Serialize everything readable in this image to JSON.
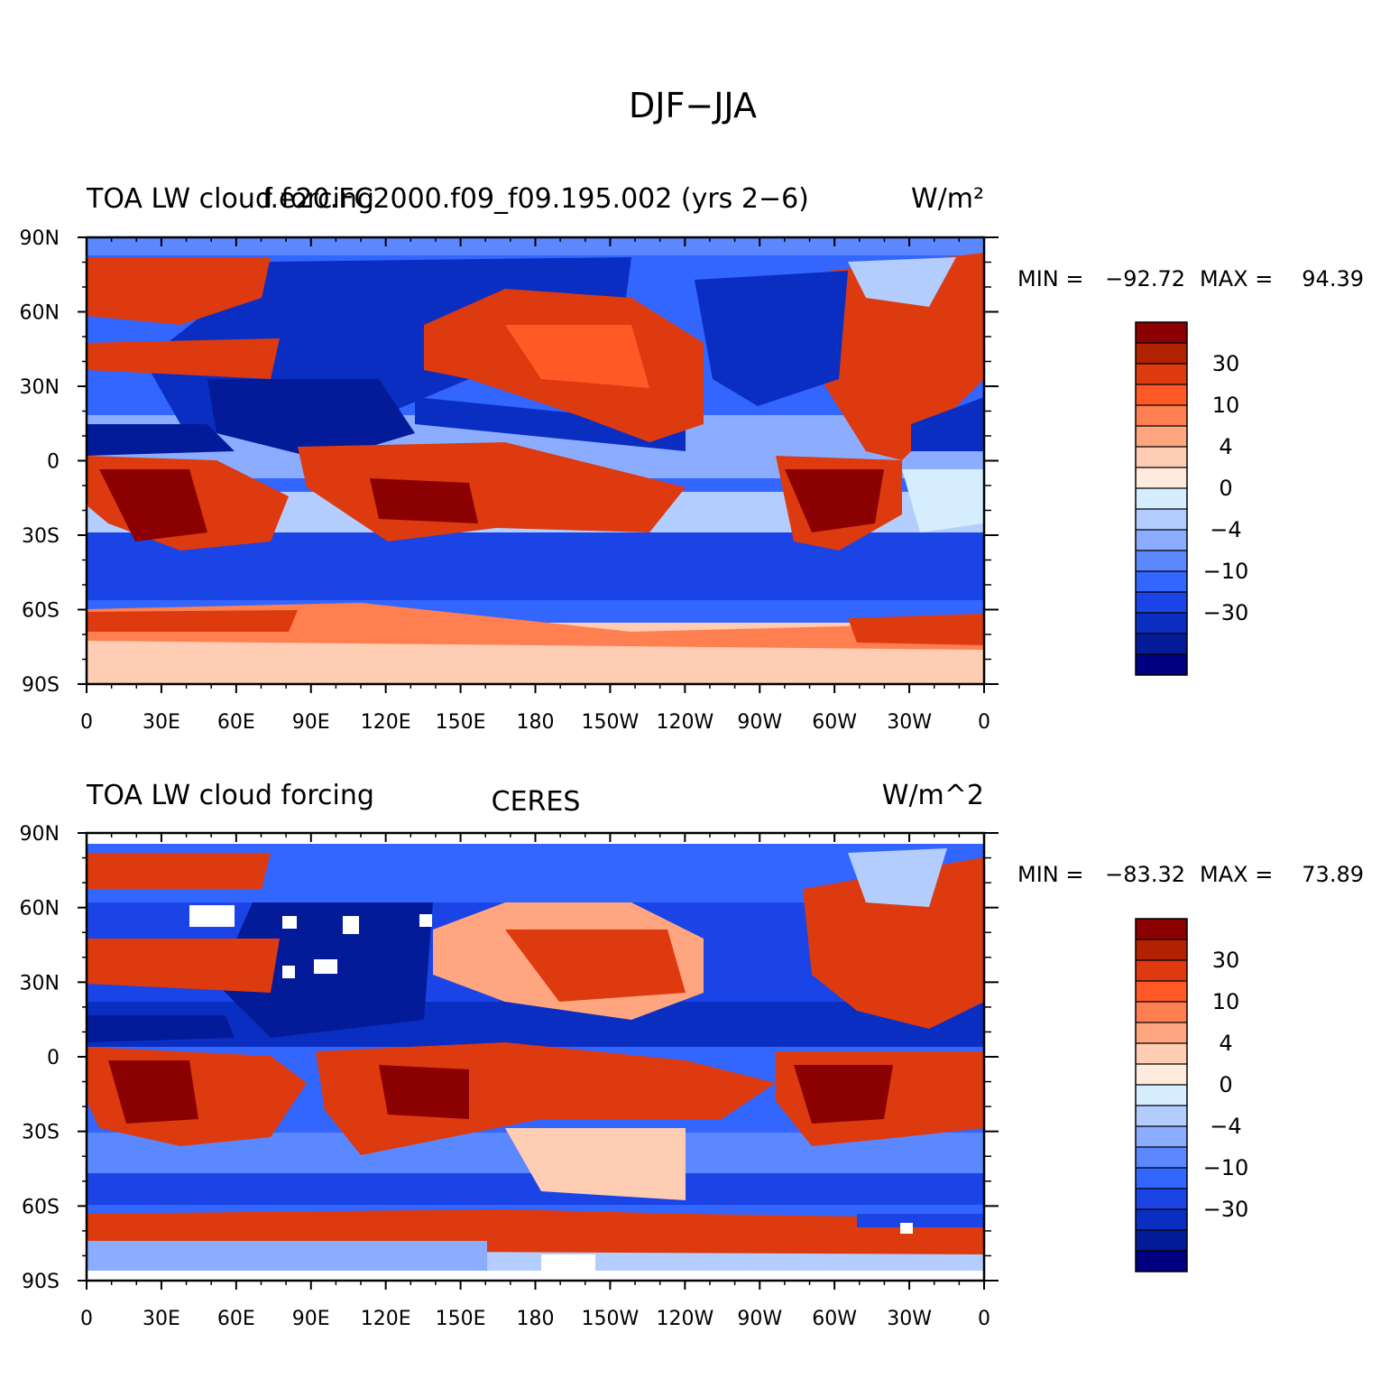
{
  "figure": {
    "title": "DJF−JJA"
  },
  "lon_ticks": [
    "0",
    "30E",
    "60E",
    "90E",
    "120E",
    "150E",
    "180",
    "150W",
    "120W",
    "90W",
    "60W",
    "30W",
    "0"
  ],
  "lat_ticks": [
    "90N",
    "60N",
    "30N",
    "0",
    "30S",
    "60S",
    "90S"
  ],
  "colorbar": {
    "labels": [
      "30",
      "10",
      "4",
      "0",
      "−4",
      "−10",
      "−30"
    ],
    "colors": [
      "#8b0000",
      "#b22200",
      "#dd3a10",
      "#ff5a26",
      "#ff7f50",
      "#ffa57f",
      "#ffcdb3",
      "#ffebde",
      "#d6ecff",
      "#b3cdff",
      "#8cacff",
      "#5c88ff",
      "#3366ff",
      "#1a44e6",
      "#0a2ec2",
      "#041b99",
      "#000080"
    ]
  },
  "panels": [
    {
      "id": "model",
      "left_title": "TOA LW cloud forcing",
      "center_title": "f.e20.FC2000.f09_f09.195.002 (yrs 2−6)",
      "units": "W/m²",
      "min_label": "MIN =",
      "min_value": "−92.72",
      "max_label": "MAX =",
      "max_value": "94.39"
    },
    {
      "id": "obs",
      "left_title": "TOA LW cloud forcing",
      "center_title": "CERES",
      "units": "W/m^2",
      "min_label": "MIN =",
      "min_value": "−83.32",
      "max_label": "MAX =",
      "max_value": "73.89"
    }
  ]
}
